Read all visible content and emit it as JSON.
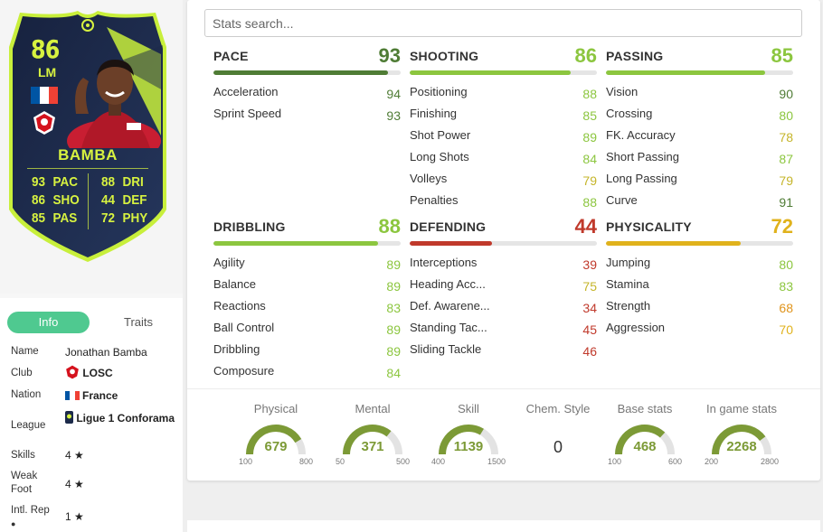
{
  "card": {
    "rating": "86",
    "position": "LM",
    "name": "BAMBA",
    "flag_colors": [
      "#0055a4",
      "#ffffff",
      "#ef4135"
    ],
    "stats_left": [
      {
        "v": "93",
        "l": "PAC"
      },
      {
        "v": "86",
        "l": "SHO"
      },
      {
        "v": "85",
        "l": "PAS"
      }
    ],
    "stats_right": [
      {
        "v": "88",
        "l": "DRI"
      },
      {
        "v": "44",
        "l": "DEF"
      },
      {
        "v": "72",
        "l": "PHY"
      }
    ],
    "colors": {
      "card_bg": "#1c2a4a",
      "border": "#c8ef3b",
      "text": "#d7f240"
    }
  },
  "info": {
    "tabs": [
      "Info",
      "Traits"
    ],
    "rows": {
      "name": {
        "k": "Name",
        "v": "Jonathan Bamba"
      },
      "club": {
        "k": "Club",
        "v": "LOSC"
      },
      "nation": {
        "k": "Nation",
        "v": "France"
      },
      "league": {
        "k": "League",
        "v": "Ligue 1 Conforama"
      },
      "skills": {
        "k": "Skills",
        "v": "4"
      },
      "weak_foot": {
        "k": "Weak Foot",
        "v": "4"
      },
      "intl_rep": {
        "k": "Intl. Rep",
        "v": "1"
      }
    },
    "star": "★"
  },
  "search": {
    "placeholder": "Stats search..."
  },
  "groups": [
    {
      "title": "PACE",
      "value": "93",
      "color": "#4f7c35",
      "items": [
        {
          "n": "Acceleration",
          "v": "94",
          "c": "#4f7c35"
        },
        {
          "n": "Sprint Speed",
          "v": "93",
          "c": "#4f7c35"
        }
      ]
    },
    {
      "title": "SHOOTING",
      "value": "86",
      "color": "#8cc63f",
      "items": [
        {
          "n": "Positioning",
          "v": "88",
          "c": "#8cc63f"
        },
        {
          "n": "Finishing",
          "v": "85",
          "c": "#8cc63f"
        },
        {
          "n": "Shot Power",
          "v": "89",
          "c": "#8cc63f"
        },
        {
          "n": "Long Shots",
          "v": "84",
          "c": "#8cc63f"
        },
        {
          "n": "Volleys",
          "v": "79",
          "c": "#c5b52a"
        },
        {
          "n": "Penalties",
          "v": "88",
          "c": "#8cc63f"
        }
      ]
    },
    {
      "title": "PASSING",
      "value": "85",
      "color": "#8cc63f",
      "items": [
        {
          "n": "Vision",
          "v": "90",
          "c": "#4f7c35"
        },
        {
          "n": "Crossing",
          "v": "80",
          "c": "#8cc63f"
        },
        {
          "n": "FK. Accuracy",
          "v": "78",
          "c": "#c5b52a"
        },
        {
          "n": "Short Passing",
          "v": "87",
          "c": "#8cc63f"
        },
        {
          "n": "Long Passing",
          "v": "79",
          "c": "#c5b52a"
        },
        {
          "n": "Curve",
          "v": "91",
          "c": "#4f7c35"
        }
      ]
    },
    {
      "title": "DRIBBLING",
      "value": "88",
      "color": "#8cc63f",
      "items": [
        {
          "n": "Agility",
          "v": "89",
          "c": "#8cc63f"
        },
        {
          "n": "Balance",
          "v": "89",
          "c": "#8cc63f"
        },
        {
          "n": "Reactions",
          "v": "83",
          "c": "#8cc63f"
        },
        {
          "n": "Ball Control",
          "v": "89",
          "c": "#8cc63f"
        },
        {
          "n": "Dribbling",
          "v": "89",
          "c": "#8cc63f"
        },
        {
          "n": "Composure",
          "v": "84",
          "c": "#8cc63f"
        }
      ]
    },
    {
      "title": "DEFENDING",
      "value": "44",
      "color": "#c0392b",
      "items": [
        {
          "n": "Interceptions",
          "v": "39",
          "c": "#c0392b"
        },
        {
          "n": "Heading Acc...",
          "v": "75",
          "c": "#c5b52a"
        },
        {
          "n": "Def. Awarene...",
          "v": "34",
          "c": "#c0392b"
        },
        {
          "n": "Standing Tac...",
          "v": "45",
          "c": "#c0392b"
        },
        {
          "n": "Sliding Tackle",
          "v": "46",
          "c": "#c0392b"
        }
      ]
    },
    {
      "title": "PHYSICALITY",
      "value": "72",
      "color": "#e0b21c",
      "items": [
        {
          "n": "Jumping",
          "v": "80",
          "c": "#8cc63f"
        },
        {
          "n": "Stamina",
          "v": "83",
          "c": "#8cc63f"
        },
        {
          "n": "Strength",
          "v": "68",
          "c": "#e0941c"
        },
        {
          "n": "Aggression",
          "v": "70",
          "c": "#e0b21c"
        }
      ]
    }
  ],
  "gauges": [
    {
      "label": "Physical",
      "value": "679",
      "min": "100",
      "max": "800"
    },
    {
      "label": "Mental",
      "value": "371",
      "min": "50",
      "max": "500"
    },
    {
      "label": "Skill",
      "value": "1139",
      "min": "400",
      "max": "1500"
    },
    {
      "label": "Chem. Style",
      "value": "0",
      "min": "",
      "max": ""
    },
    {
      "label": "Base stats",
      "value": "468",
      "min": "100",
      "max": "600"
    },
    {
      "label": "In game stats",
      "value": "2268",
      "min": "200",
      "max": "2800"
    }
  ]
}
